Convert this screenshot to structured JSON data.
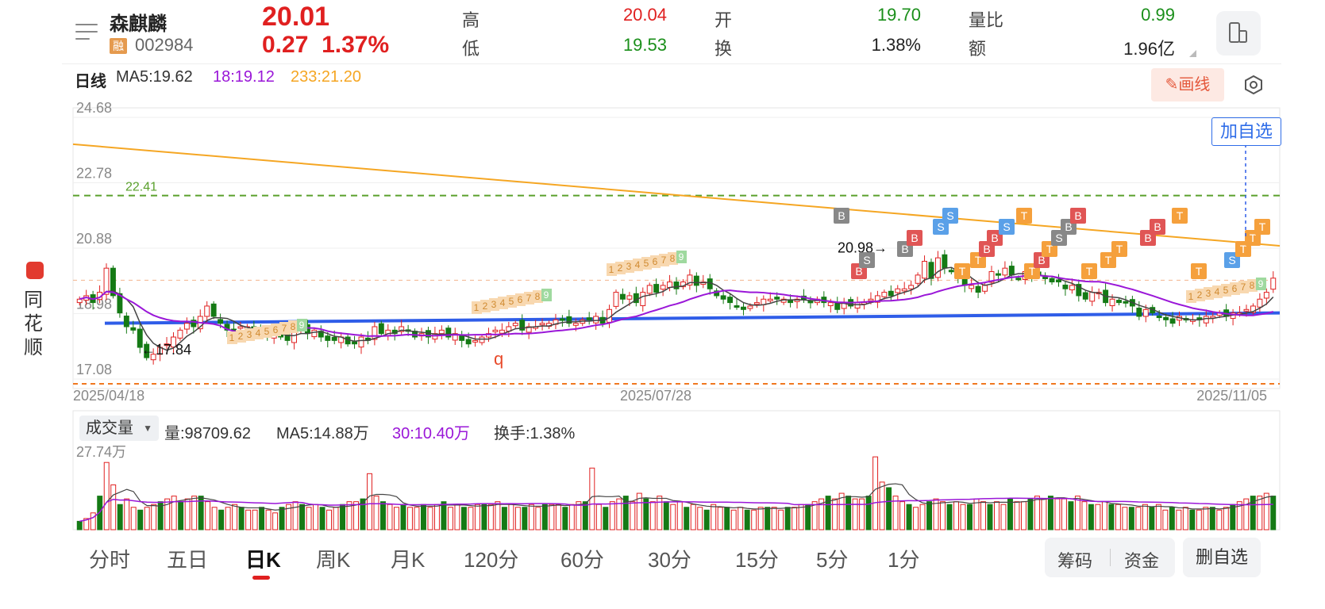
{
  "stock": {
    "name": "森麒麟",
    "rong_badge": "融",
    "code": "002984",
    "price": "20.01",
    "change": "0.27",
    "change_pct": "1.37%"
  },
  "quote": {
    "high_label": "高",
    "high": "20.04",
    "low_label": "低",
    "low": "19.53",
    "open_label": "开",
    "open": "19.70",
    "turnover_label": "换",
    "turnover": "1.38%",
    "vol_ratio_label": "量比",
    "vol_ratio": "0.99",
    "amount_label": "额",
    "amount": "1.96亿"
  },
  "indicators": {
    "period": "日线",
    "ma5": "MA5:19.62",
    "ma18": "18:19.12",
    "ma233": "233:21.20"
  },
  "toolbar": {
    "draw_label": "画线",
    "add_watch": "加自选"
  },
  "side": {
    "brand_chars": [
      "同",
      "花",
      "顺"
    ]
  },
  "colors": {
    "up": "#e02020",
    "down": "#157a15",
    "ma5": "#444444",
    "ma18": "#9a17d8",
    "ma233": "#f5a623",
    "trend": "#2f5de8",
    "dash_green": "#5aa02c",
    "dash_orange": "#f07820"
  },
  "chart_data": {
    "type": "candlestick",
    "y_ticks": [
      "24.68",
      "22.78",
      "20.88",
      "18.98",
      "17.08"
    ],
    "ylim": [
      17.08,
      24.68
    ],
    "x_labels": [
      "2025/04/18",
      "2025/07/28",
      "2025/11/05"
    ],
    "annotations": {
      "high": "20.98",
      "low": "17.84",
      "ref_line": "22.41",
      "arrow_high": "20.98→",
      "arrow_low": "←17.84",
      "marker_q": "q"
    },
    "ref_lines": [
      22.41,
      17.08
    ],
    "trend_line": {
      "from": 18.7,
      "to": 19.0
    },
    "ma233": {
      "from": 23.9,
      "to": 20.95
    },
    "closes": [
      19.4,
      19.5,
      19.3,
      19.6,
      20.3,
      19.5,
      19.0,
      18.6,
      18.5,
      18.0,
      17.7,
      17.8,
      18.0,
      18.1,
      18.3,
      18.5,
      18.7,
      18.6,
      18.9,
      19.2,
      18.9,
      18.7,
      18.5,
      18.5,
      18.6,
      18.6,
      18.5,
      18.5,
      18.3,
      18.4,
      18.3,
      18.2,
      18.5,
      18.6,
      18.4,
      18.5,
      18.3,
      18.2,
      18.2,
      18.3,
      18.1,
      18.1,
      18.3,
      18.2,
      18.6,
      18.4,
      18.5,
      18.4,
      18.6,
      18.5,
      18.3,
      18.4,
      18.3,
      18.4,
      18.5,
      18.3,
      18.4,
      18.2,
      18.1,
      18.2,
      18.3,
      18.4,
      18.5,
      18.5,
      18.6,
      18.7,
      18.5,
      18.6,
      18.6,
      18.7,
      18.7,
      18.8,
      18.8,
      18.7,
      18.7,
      18.8,
      18.8,
      18.9,
      18.7,
      19.1,
      19.6,
      19.4,
      19.5,
      19.3,
      19.6,
      19.8,
      19.6,
      19.8,
      19.9,
      19.7,
      19.9,
      20.1,
      19.8,
      19.9,
      19.7,
      19.5,
      19.4,
      19.3,
      19.2,
      19.1,
      19.2,
      19.3,
      19.4,
      19.4,
      19.4,
      19.4,
      19.3,
      19.4,
      19.4,
      19.3,
      19.4,
      19.3,
      19.3,
      19.1,
      19.3,
      19.2,
      19.3,
      19.3,
      19.4,
      19.5,
      19.6,
      19.5,
      19.7,
      19.7,
      19.8,
      20.1,
      20.5,
      20.0,
      20.6,
      20.3,
      20.2,
      20.0,
      19.8,
      19.8,
      19.6,
      19.8,
      20.2,
      20.1,
      20.3,
      20.1,
      20.0,
      20.2,
      20.1,
      20.1,
      20.0,
      19.9,
      19.9,
      19.7,
      19.8,
      19.5,
      19.4,
      19.6,
      19.6,
      19.3,
      19.4,
      19.3,
      19.3,
      19.2,
      18.9,
      19.1,
      19.0,
      18.9,
      18.8,
      18.7,
      18.9,
      18.8,
      18.8,
      18.8,
      18.9,
      18.9,
      19.0,
      18.9,
      19.0,
      19.0,
      19.1,
      19.2,
      19.4,
      19.6,
      20.01
    ],
    "volume_info": {
      "label": "成交量",
      "vol": "量:98709.62",
      "ma5": "MA5:14.88万",
      "ma30": "30:10.40万",
      "turnover": "换手:1.38%",
      "y_tick": "27.74万"
    },
    "volumes": [
      3,
      4,
      6,
      12,
      24,
      16,
      9,
      11,
      8,
      7,
      8,
      9,
      10,
      11,
      12,
      10,
      11,
      12,
      12,
      10,
      8,
      7,
      8,
      9,
      8,
      7,
      7,
      8,
      7,
      6,
      8,
      9,
      10,
      9,
      8,
      9,
      8,
      7,
      8,
      9,
      10,
      10,
      11,
      20,
      12,
      10,
      9,
      8,
      9,
      8,
      8,
      9,
      8,
      9,
      10,
      8,
      9,
      8,
      8,
      9,
      9,
      9,
      10,
      8,
      9,
      8,
      8,
      9,
      8,
      9,
      9,
      9,
      8,
      9,
      10,
      10,
      22,
      9,
      8,
      10,
      11,
      12,
      10,
      13,
      11,
      10,
      12,
      10,
      9,
      10,
      8,
      9,
      8,
      7,
      9,
      8,
      8,
      7,
      8,
      7,
      7,
      8,
      8,
      8,
      7,
      8,
      8,
      9,
      9,
      10,
      11,
      12,
      11,
      13,
      12,
      11,
      11,
      12,
      26,
      17,
      15,
      12,
      10,
      9,
      8,
      9,
      10,
      11,
      10,
      9,
      10,
      9,
      9,
      11,
      10,
      9,
      10,
      9,
      11,
      10,
      10,
      11,
      12,
      11,
      12,
      11,
      11,
      10,
      12,
      10,
      9,
      9,
      10,
      9,
      9,
      8,
      8,
      8,
      9,
      8,
      9,
      7,
      8,
      7,
      8,
      7,
      7,
      8,
      8,
      7,
      8,
      9,
      10,
      11,
      12,
      12,
      13,
      12
    ],
    "marker_chars": [
      "1",
      "2",
      "3",
      "4",
      "5",
      "6",
      "7",
      "8",
      "9",
      "B",
      "S",
      "T"
    ]
  },
  "tabs": [
    "分时",
    "五日",
    "日K",
    "周K",
    "月K",
    "120分",
    "60分",
    "30分",
    "15分",
    "5分",
    "1分"
  ],
  "active_tab": "日K",
  "buttons": {
    "chip": "筹码",
    "fund": "资金",
    "delete_watch": "删自选"
  }
}
